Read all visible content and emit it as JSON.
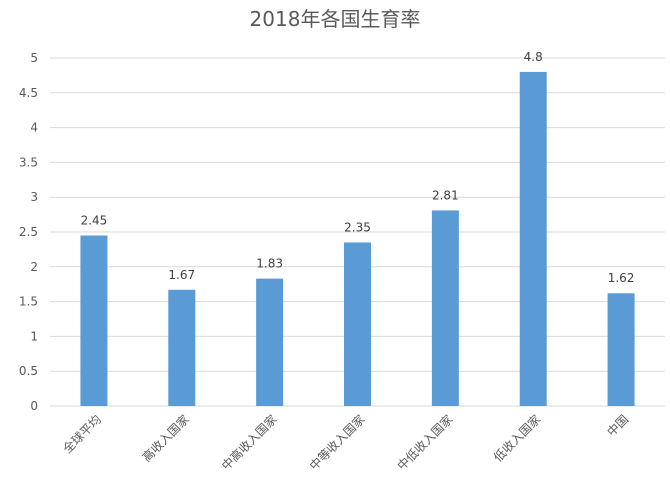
{
  "chart_data": {
    "type": "bar",
    "title": "2018年各国生育率",
    "xlabel": "",
    "ylabel": "",
    "categories": [
      "全球平均",
      "高收入国家",
      "中高收入国家",
      "中等收入国家",
      "中低收入国家",
      "低收入国家",
      "中国"
    ],
    "values": [
      2.45,
      1.67,
      1.83,
      2.35,
      2.81,
      4.8,
      1.62
    ],
    "value_labels": [
      "2.45",
      "1.67",
      "1.83",
      "2.35",
      "2.81",
      "4.8",
      "1.62"
    ],
    "ylim": [
      0,
      5
    ],
    "yticks": [
      0,
      0.5,
      1,
      1.5,
      2,
      2.5,
      3,
      3.5,
      4,
      4.5,
      5
    ],
    "ytick_labels": [
      "0",
      "0.5",
      "1",
      "1.5",
      "2",
      "2.5",
      "3",
      "3.5",
      "4",
      "4.5",
      "5"
    ],
    "grid": true,
    "legend": "none",
    "bar_color": "#5B9BD5",
    "grid_color": "#D9D9D9"
  }
}
